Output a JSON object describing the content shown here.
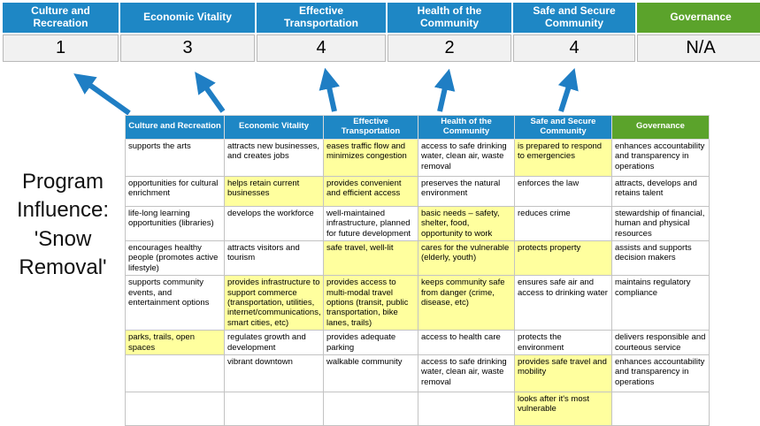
{
  "colors": {
    "header_blue": "#1e87c5",
    "header_green": "#5ba32b",
    "highlight_yellow": "#ffff9e",
    "arrow_blue": "#1f7ec4",
    "score_bg": "#f1f1f1"
  },
  "program_label": "Program Influence: 'Snow Removal'",
  "banner": {
    "columns": [
      {
        "label": "Culture and Recreation",
        "score": "1",
        "type": "blue"
      },
      {
        "label": "Economic Vitality",
        "score": "3",
        "type": "blue"
      },
      {
        "label": "Effective Transportation",
        "score": "4",
        "type": "blue"
      },
      {
        "label": "Health of the Community",
        "score": "2",
        "type": "blue"
      },
      {
        "label": "Safe and Secure Community",
        "score": "4",
        "type": "blue"
      },
      {
        "label": "Governance",
        "score": "N/A",
        "type": "green"
      }
    ]
  },
  "matrix": {
    "headers": [
      {
        "label": "Culture and Recreation",
        "type": "blue"
      },
      {
        "label": "Economic Vitality",
        "type": "blue"
      },
      {
        "label": "Effective Transportation",
        "type": "blue"
      },
      {
        "label": "Health of the Community",
        "type": "blue"
      },
      {
        "label": "Safe and Secure Community",
        "type": "blue"
      },
      {
        "label": "Governance",
        "type": "green"
      }
    ],
    "rows": [
      [
        {
          "t": "supports the arts",
          "h": false
        },
        {
          "t": "attracts new businesses, and creates jobs",
          "h": false
        },
        {
          "t": "eases traffic flow and minimizes congestion",
          "h": true
        },
        {
          "t": "access to safe drinking water, clean air, waste removal",
          "h": false
        },
        {
          "t": "is prepared to respond to emergencies",
          "h": true
        },
        {
          "t": "enhances accountability and transparency in operations",
          "h": false
        }
      ],
      [
        {
          "t": "opportunities for cultural enrichment",
          "h": false
        },
        {
          "t": "helps retain current businesses",
          "h": true
        },
        {
          "t": "provides convenient and efficient access",
          "h": true
        },
        {
          "t": "preserves the natural environment",
          "h": false
        },
        {
          "t": "enforces the law",
          "h": false
        },
        {
          "t": "attracts, develops and retains talent",
          "h": false
        }
      ],
      [
        {
          "t": "life-long learning opportunities (libraries)",
          "h": false
        },
        {
          "t": "develops the workforce",
          "h": false
        },
        {
          "t": "well-maintained infrastructure, planned for future development",
          "h": false
        },
        {
          "t": "basic needs – safety, shelter, food, opportunity to work",
          "h": true
        },
        {
          "t": "reduces crime",
          "h": false
        },
        {
          "t": "stewardship of financial, human and physical resources",
          "h": false
        }
      ],
      [
        {
          "t": "encourages healthy people (promotes active lifestyle)",
          "h": false
        },
        {
          "t": "attracts visitors and tourism",
          "h": false
        },
        {
          "t": "safe travel, well-lit",
          "h": true
        },
        {
          "t": "cares for the vulnerable (elderly, youth)",
          "h": true
        },
        {
          "t": "protects property",
          "h": true
        },
        {
          "t": "assists and supports decision makers",
          "h": false
        }
      ],
      [
        {
          "t": "supports community events, and entertainment options",
          "h": false
        },
        {
          "t": "provides infrastructure to support commerce (transportation, utilities, internet/communications, smart cities, etc)",
          "h": true
        },
        {
          "t": "provides access to multi-modal travel options (transit, public transportation, bike lanes, trails)",
          "h": true
        },
        {
          "t": "keeps community safe from danger (crime, disease, etc)",
          "h": true
        },
        {
          "t": "ensures safe air and access to drinking water",
          "h": false
        },
        {
          "t": "maintains regulatory compliance",
          "h": false
        }
      ],
      [
        {
          "t": "parks, trails, open spaces",
          "h": true
        },
        {
          "t": "regulates growth and development",
          "h": false
        },
        {
          "t": "provides adequate parking",
          "h": false
        },
        {
          "t": "access to health care",
          "h": false
        },
        {
          "t": "protects the environment",
          "h": false
        },
        {
          "t": "delivers responsible and courteous service",
          "h": false
        }
      ],
      [
        {
          "t": "",
          "h": false
        },
        {
          "t": "vibrant downtown",
          "h": false
        },
        {
          "t": "walkable community",
          "h": false
        },
        {
          "t": "access to safe drinking water, clean air, waste removal",
          "h": false
        },
        {
          "t": "provides safe travel and mobility",
          "h": true
        },
        {
          "t": "enhances accountability and transparency in operations",
          "h": false
        }
      ],
      [
        {
          "t": "",
          "h": false
        },
        {
          "t": "",
          "h": false
        },
        {
          "t": "",
          "h": false
        },
        {
          "t": "",
          "h": false
        },
        {
          "t": "looks after it's most vulnerable",
          "h": true
        },
        {
          "t": "",
          "h": false
        }
      ]
    ]
  }
}
